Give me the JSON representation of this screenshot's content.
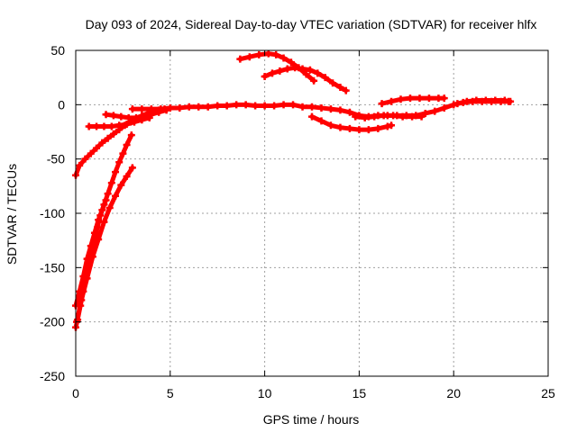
{
  "chart_data": {
    "type": "scatter",
    "title": "Day 093 of 2024, Sidereal Day-to-day VTEC variation (SDTVAR) for receiver hlfx",
    "xlabel": "GPS time / hours",
    "ylabel": "SDTVAR / TECUs",
    "xlim": [
      0,
      25
    ],
    "ylim": [
      -250,
      50
    ],
    "xticks": [
      0,
      5,
      10,
      15,
      20,
      25
    ],
    "yticks": [
      -250,
      -200,
      -150,
      -100,
      -50,
      0,
      50
    ],
    "grid": true,
    "legend": "none",
    "colors": {
      "series": "#ff0000",
      "grid": "#a0a0a0",
      "axis": "#000000"
    },
    "series": [
      {
        "points": [
          [
            0.0,
            -205
          ],
          [
            0.1,
            -198
          ],
          [
            0.25,
            -185
          ],
          [
            0.4,
            -172
          ],
          [
            0.55,
            -160
          ],
          [
            0.7,
            -148
          ],
          [
            0.85,
            -136
          ],
          [
            1.0,
            -124
          ],
          [
            1.15,
            -113
          ],
          [
            1.3,
            -102
          ],
          [
            1.5,
            -92
          ],
          [
            1.7,
            -82
          ],
          [
            1.9,
            -72
          ],
          [
            2.1,
            -62
          ],
          [
            2.3,
            -53
          ],
          [
            2.5,
            -45
          ],
          [
            2.7,
            -37
          ],
          [
            2.95,
            -28
          ]
        ]
      },
      {
        "points": [
          [
            0.0,
            -185
          ],
          [
            0.2,
            -172
          ],
          [
            0.4,
            -158
          ],
          [
            0.6,
            -142
          ],
          [
            0.8,
            -130
          ],
          [
            1.0,
            -118
          ],
          [
            1.2,
            -106
          ],
          [
            1.4,
            -97
          ],
          [
            1.6,
            -88
          ]
        ]
      },
      {
        "points": [
          [
            0.05,
            -200
          ],
          [
            0.3,
            -180
          ],
          [
            0.6,
            -160
          ],
          [
            0.9,
            -140
          ],
          [
            1.2,
            -124
          ],
          [
            1.5,
            -108
          ],
          [
            1.8,
            -95
          ],
          [
            2.1,
            -84
          ],
          [
            2.4,
            -74
          ],
          [
            2.7,
            -66
          ],
          [
            3.0,
            -58
          ]
        ]
      },
      {
        "points": [
          [
            0.0,
            -65
          ],
          [
            0.2,
            -56
          ],
          [
            0.5,
            -50
          ],
          [
            0.8,
            -45
          ],
          [
            1.1,
            -40
          ],
          [
            1.4,
            -35
          ],
          [
            1.7,
            -31
          ],
          [
            2.0,
            -27
          ],
          [
            2.3,
            -23
          ],
          [
            2.6,
            -19
          ],
          [
            2.9,
            -16
          ],
          [
            3.2,
            -13
          ],
          [
            3.5,
            -10
          ],
          [
            3.8,
            -8
          ],
          [
            4.1,
            -6
          ],
          [
            4.4,
            -5
          ],
          [
            4.7,
            -4
          ]
        ]
      },
      {
        "points": [
          [
            0.7,
            -20
          ],
          [
            1.1,
            -20
          ],
          [
            1.5,
            -20
          ],
          [
            1.9,
            -20
          ],
          [
            2.3,
            -19
          ],
          [
            2.7,
            -18
          ],
          [
            3.1,
            -16
          ],
          [
            3.5,
            -14
          ],
          [
            3.9,
            -12
          ]
        ]
      },
      {
        "points": [
          [
            1.6,
            -9
          ],
          [
            2.0,
            -10
          ],
          [
            2.4,
            -11
          ],
          [
            2.8,
            -12
          ],
          [
            3.2,
            -12
          ],
          [
            3.6,
            -11
          ],
          [
            4.0,
            -9
          ],
          [
            4.4,
            -7
          ],
          [
            4.8,
            -5
          ]
        ]
      },
      {
        "points": [
          [
            3.0,
            -4
          ],
          [
            3.5,
            -4
          ],
          [
            4.0,
            -4
          ],
          [
            4.5,
            -4
          ],
          [
            5.0,
            -3
          ],
          [
            5.5,
            -3
          ],
          [
            6.0,
            -2
          ],
          [
            6.5,
            -2
          ],
          [
            7.0,
            -2
          ],
          [
            7.5,
            -1
          ],
          [
            8.0,
            -1
          ],
          [
            8.5,
            0
          ],
          [
            9.0,
            0
          ],
          [
            9.5,
            -1
          ],
          [
            10.0,
            -1
          ],
          [
            10.5,
            -1
          ],
          [
            11.0,
            0
          ],
          [
            11.5,
            0
          ],
          [
            12.0,
            -2
          ],
          [
            12.5,
            -2
          ],
          [
            13.0,
            -3
          ],
          [
            13.5,
            -4
          ],
          [
            14.0,
            -5
          ],
          [
            14.5,
            -7
          ],
          [
            15.0,
            -10
          ],
          [
            15.5,
            -11
          ],
          [
            16.0,
            -10
          ],
          [
            16.5,
            -10
          ],
          [
            17.0,
            -10
          ],
          [
            17.5,
            -10
          ],
          [
            18.0,
            -10
          ],
          [
            18.5,
            -8
          ],
          [
            19.0,
            -6
          ],
          [
            19.5,
            -3
          ],
          [
            20.0,
            0
          ],
          [
            20.5,
            2
          ],
          [
            21.0,
            3
          ],
          [
            21.5,
            3
          ],
          [
            22.0,
            3
          ],
          [
            22.5,
            3
          ],
          [
            23.0,
            3
          ]
        ]
      },
      {
        "points": [
          [
            8.7,
            42
          ],
          [
            9.2,
            44
          ],
          [
            9.7,
            46
          ],
          [
            10.2,
            47
          ],
          [
            10.6,
            46
          ],
          [
            11.0,
            43
          ],
          [
            11.4,
            39
          ],
          [
            11.8,
            34
          ],
          [
            12.2,
            28
          ],
          [
            12.6,
            22
          ]
        ]
      },
      {
        "points": [
          [
            10.0,
            26
          ],
          [
            10.4,
            29
          ],
          [
            10.8,
            31
          ],
          [
            11.2,
            33
          ],
          [
            11.6,
            34
          ],
          [
            12.0,
            33
          ],
          [
            12.4,
            32
          ],
          [
            12.8,
            29
          ],
          [
            13.2,
            25
          ],
          [
            13.6,
            20
          ],
          [
            14.0,
            16
          ],
          [
            14.3,
            13
          ]
        ]
      },
      {
        "points": [
          [
            12.5,
            -11
          ],
          [
            13.0,
            -15
          ],
          [
            13.5,
            -19
          ],
          [
            14.0,
            -21
          ],
          [
            14.5,
            -22
          ],
          [
            15.0,
            -23
          ],
          [
            15.5,
            -23
          ],
          [
            16.0,
            -22
          ],
          [
            16.5,
            -20
          ],
          [
            16.7,
            -19
          ]
        ]
      },
      {
        "points": [
          [
            16.2,
            1
          ],
          [
            16.7,
            3
          ],
          [
            17.2,
            5
          ],
          [
            17.7,
            6
          ],
          [
            18.2,
            6
          ],
          [
            18.7,
            6
          ],
          [
            19.2,
            6
          ],
          [
            19.5,
            6
          ]
        ]
      },
      {
        "points": [
          [
            14.8,
            -11
          ],
          [
            15.3,
            -12
          ],
          [
            15.8,
            -11
          ],
          [
            16.3,
            -10
          ],
          [
            16.8,
            -10
          ],
          [
            17.3,
            -11
          ],
          [
            17.8,
            -11
          ],
          [
            18.3,
            -11
          ]
        ]
      },
      {
        "points": [
          [
            20.2,
            1
          ],
          [
            20.7,
            3
          ],
          [
            21.2,
            4
          ],
          [
            21.7,
            4
          ],
          [
            22.2,
            4
          ],
          [
            22.7,
            4
          ],
          [
            22.9,
            3
          ]
        ]
      }
    ]
  }
}
